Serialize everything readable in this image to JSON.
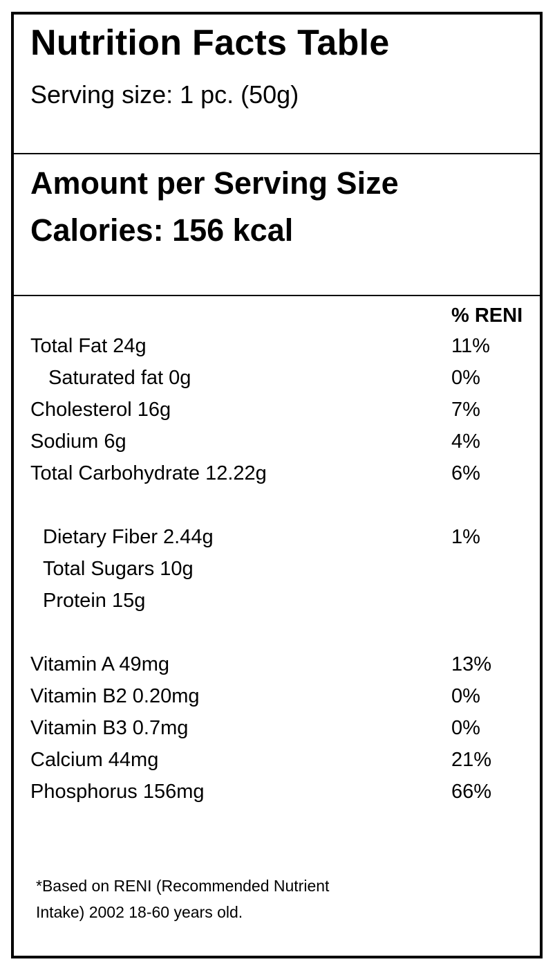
{
  "title": "Nutrition Facts Table",
  "serving_size": "Serving size: 1 pc. (50g)",
  "amount_heading": "Amount per Serving Size",
  "calories": "Calories: 156 kcal",
  "reni_header": "% RENI",
  "nutrients": [
    {
      "name": "Total Fat 24g",
      "reni": "11%"
    },
    {
      "name": "Saturated fat 0g",
      "reni": "0%"
    },
    {
      "name": "Cholesterol 16g",
      "reni": "7%"
    },
    {
      "name": "Sodium 6g",
      "reni": "4%"
    },
    {
      "name": "Total Carbohydrate 12.22g",
      "reni": "6%"
    },
    {
      "name": "Dietary Fiber 2.44g",
      "reni": "1%"
    },
    {
      "name": "Total Sugars 10g",
      "reni": ""
    },
    {
      "name": "Protein 15g",
      "reni": ""
    },
    {
      "name": "Vitamin A 49mg",
      "reni": "13%"
    },
    {
      "name": "Vitamin B2 0.20mg",
      "reni": "0%"
    },
    {
      "name": "Vitamin B3 0.7mg",
      "reni": "0%"
    },
    {
      "name": "Calcium 44mg",
      "reni": "21%"
    },
    {
      "name": "Phosphorus 156mg",
      "reni": "66%"
    }
  ],
  "footnote_line1": "*Based on RENI (Recommended Nutrient",
  "footnote_line2": "Intake) 2002 18-60 years old."
}
